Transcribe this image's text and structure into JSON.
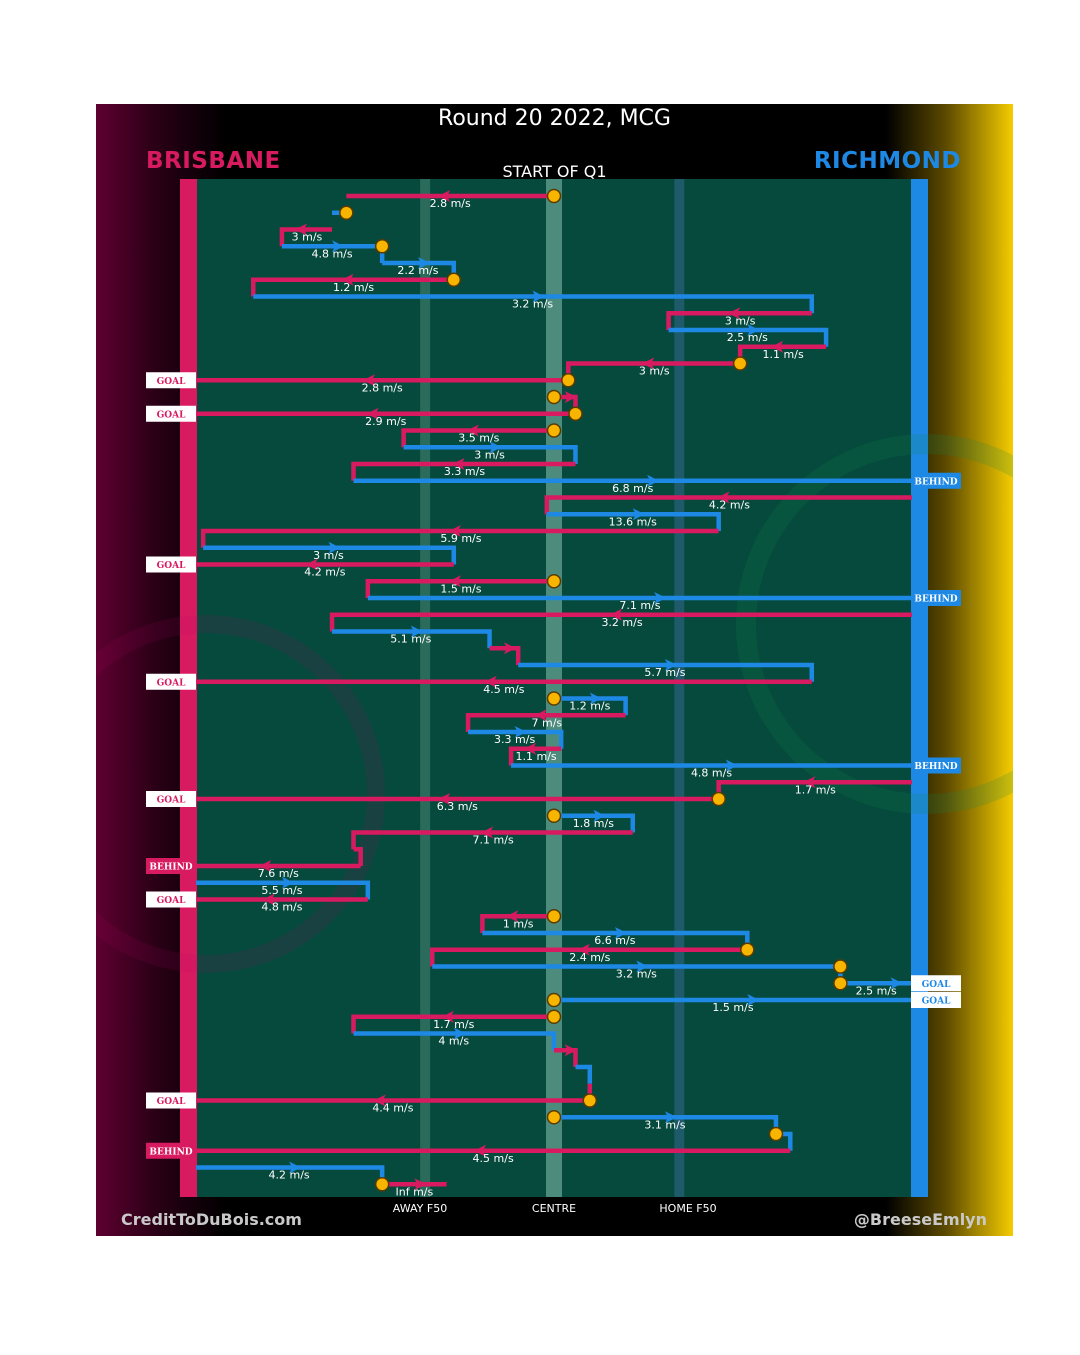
{
  "colors": {
    "brisbane": "#d81b60",
    "richmond": "#1e88e5",
    "field": "#054a3c",
    "ball": "#f7b500",
    "ball_stroke": "#5a3a00"
  },
  "poster": {
    "title": "Round 20 2022, MCG",
    "team_left": "BRISBANE",
    "team_right": "RICHMOND",
    "period": "START OF Q1",
    "credit_left": "CreditToDuBois.com",
    "credit_right": "@BreeseEmlyn"
  },
  "chart_data": {
    "type": "chain-of-possession",
    "title": "Round 20 2022, MCG",
    "subtitle": "START OF Q1",
    "x_axis_labels": [
      "AWAY F50",
      "CENTRE",
      "HOME F50"
    ],
    "x_range": [
      0,
      100
    ],
    "axis_positions": {
      "away_f50": 32,
      "centre": 50,
      "home_f50": 67.5
    },
    "left_team": "BRISBANE",
    "right_team": "RICHMOND",
    "outcome_tags": [
      {
        "team": "brisbane",
        "text": "GOAL",
        "row": 11
      },
      {
        "team": "brisbane",
        "text": "GOAL",
        "row": 13
      },
      {
        "team": "richmond",
        "text": "BEHIND",
        "row": 17
      },
      {
        "team": "brisbane",
        "text": "GOAL",
        "row": 22
      },
      {
        "team": "richmond",
        "text": "BEHIND",
        "row": 24
      },
      {
        "team": "brisbane",
        "text": "GOAL",
        "row": 29
      },
      {
        "team": "richmond",
        "text": "BEHIND",
        "row": 34
      },
      {
        "team": "brisbane",
        "text": "GOAL",
        "row": 36
      },
      {
        "team": "brisbane",
        "text": "BEHIND",
        "row": 40
      },
      {
        "team": "brisbane",
        "text": "GOAL",
        "row": 42
      },
      {
        "team": "richmond",
        "text": "GOAL",
        "row": 47
      },
      {
        "team": "richmond",
        "text": "GOAL",
        "row": 48
      },
      {
        "team": "brisbane",
        "text": "GOAL",
        "row": 54
      },
      {
        "team": "brisbane",
        "text": "BEHIND",
        "row": 57
      }
    ],
    "possessions": [
      {
        "team": "brisbane",
        "x1": 50,
        "x2": 21,
        "row": 0,
        "speed": "2.8 m/s",
        "ball_start": true
      },
      {
        "team": "richmond",
        "x1": 19,
        "x2": 21,
        "row": 1,
        "speed": "",
        "ball_end": true
      },
      {
        "team": "brisbane",
        "x1": 19,
        "x2": 12,
        "row": 2,
        "speed": "3 m/s"
      },
      {
        "team": "richmond",
        "x1": 12,
        "x2": 26,
        "row": 3,
        "speed": "4.8 m/s",
        "ball_end": true
      },
      {
        "team": "richmond",
        "x1": 26,
        "x2": 36,
        "row": 4,
        "speed": "2.2 m/s"
      },
      {
        "team": "brisbane",
        "x1": 36,
        "x2": 8,
        "row": 5,
        "speed": "1.2 m/s",
        "ball_start": true
      },
      {
        "team": "richmond",
        "x1": 8,
        "x2": 86,
        "row": 6,
        "speed": "3.2 m/s"
      },
      {
        "team": "brisbane",
        "x1": 86,
        "x2": 66,
        "row": 7,
        "speed": "3 m/s"
      },
      {
        "team": "richmond",
        "x1": 66,
        "x2": 88,
        "row": 8,
        "speed": "2.5 m/s"
      },
      {
        "team": "brisbane",
        "x1": 88,
        "x2": 76,
        "row": 9,
        "speed": "1.1 m/s"
      },
      {
        "team": "brisbane",
        "x1": 76,
        "x2": 52,
        "row": 10,
        "speed": "3 m/s",
        "ball_start": true
      },
      {
        "team": "brisbane",
        "x1": 52,
        "x2": -2,
        "row": 11,
        "speed": "2.8 m/s",
        "ball_start": true
      },
      {
        "team": "brisbane",
        "x1": 50,
        "x2": 53,
        "row": 12,
        "speed": "",
        "ball_start": true
      },
      {
        "team": "brisbane",
        "x1": 53,
        "x2": -2,
        "row": 13,
        "speed": "2.9 m/s",
        "ball_start": true
      },
      {
        "team": "brisbane",
        "x1": 50,
        "x2": 29,
        "row": 14,
        "speed": "3.5 m/s",
        "ball_start": true
      },
      {
        "team": "richmond",
        "x1": 29,
        "x2": 53,
        "row": 15,
        "speed": "3 m/s"
      },
      {
        "team": "brisbane",
        "x1": 53,
        "x2": 22,
        "row": 16,
        "speed": "3.3 m/s"
      },
      {
        "team": "richmond",
        "x1": 22,
        "x2": 104,
        "row": 17,
        "speed": "6.8 m/s"
      },
      {
        "team": "brisbane",
        "x1": 100,
        "x2": 49,
        "row": 18,
        "speed": "4.2 m/s"
      },
      {
        "team": "richmond",
        "x1": 49,
        "x2": 73,
        "row": 19,
        "speed": "13.6 m/s"
      },
      {
        "team": "brisbane",
        "x1": 73,
        "x2": 1,
        "row": 20,
        "speed": "5.9 m/s"
      },
      {
        "team": "richmond",
        "x1": 1,
        "x2": 36,
        "row": 21,
        "speed": "3 m/s"
      },
      {
        "team": "brisbane",
        "x1": 36,
        "x2": -2,
        "row": 22,
        "speed": "4.2 m/s"
      },
      {
        "team": "brisbane",
        "x1": 50,
        "x2": 24,
        "row": 23,
        "speed": "1.5 m/s",
        "ball_start": true
      },
      {
        "team": "richmond",
        "x1": 24,
        "x2": 104,
        "row": 24,
        "speed": "7.1 m/s"
      },
      {
        "team": "brisbane",
        "x1": 100,
        "x2": 19,
        "row": 25,
        "speed": "3.2 m/s"
      },
      {
        "team": "richmond",
        "x1": 19,
        "x2": 41,
        "row": 26,
        "speed": "5.1 m/s"
      },
      {
        "team": "brisbane",
        "x1": 41,
        "x2": 45,
        "row": 27,
        "speed": ""
      },
      {
        "team": "richmond",
        "x1": 45,
        "x2": 86,
        "row": 28,
        "speed": "5.7 m/s"
      },
      {
        "team": "brisbane",
        "x1": 86,
        "x2": -2,
        "row": 29,
        "speed": "4.5 m/s"
      },
      {
        "team": "richmond",
        "x1": 50,
        "x2": 60,
        "row": 30,
        "speed": "1.2 m/s",
        "ball_start": true
      },
      {
        "team": "brisbane",
        "x1": 60,
        "x2": 38,
        "row": 31,
        "speed": "7 m/s"
      },
      {
        "team": "richmond",
        "x1": 38,
        "x2": 51,
        "row": 32,
        "speed": "3.3 m/s"
      },
      {
        "team": "brisbane",
        "x1": 51,
        "x2": 44,
        "row": 33,
        "speed": "1.1 m/s"
      },
      {
        "team": "richmond",
        "x1": 44,
        "x2": 104,
        "row": 34,
        "speed": "4.8 m/s"
      },
      {
        "team": "brisbane",
        "x1": 100,
        "x2": 73,
        "row": 35,
        "speed": "1.7 m/s"
      },
      {
        "team": "brisbane",
        "x1": 73,
        "x2": -2,
        "row": 36,
        "speed": "6.3 m/s",
        "ball_start": true
      },
      {
        "team": "richmond",
        "x1": 50,
        "x2": 61,
        "row": 37,
        "speed": "1.8 m/s",
        "ball_start": true
      },
      {
        "team": "brisbane",
        "x1": 61,
        "x2": 22,
        "row": 38,
        "speed": "7.1 m/s"
      },
      {
        "team": "brisbane",
        "x1": 22,
        "x2": 23,
        "row": 39,
        "speed": ""
      },
      {
        "team": "brisbane",
        "x1": 23,
        "x2": -2,
        "row": 40,
        "speed": "7.6 m/s"
      },
      {
        "team": "richmond",
        "x1": 0,
        "x2": 24,
        "row": 41,
        "speed": "5.5 m/s"
      },
      {
        "team": "brisbane",
        "x1": 24,
        "x2": -2,
        "row": 42,
        "speed": "4.8 m/s"
      },
      {
        "team": "brisbane",
        "x1": 50,
        "x2": 40,
        "row": 43,
        "speed": "1 m/s",
        "ball_start": true
      },
      {
        "team": "richmond",
        "x1": 40,
        "x2": 77,
        "row": 44,
        "speed": "6.6 m/s"
      },
      {
        "team": "brisbane",
        "x1": 77,
        "x2": 33,
        "row": 45,
        "speed": "2.4 m/s",
        "ball_start": true
      },
      {
        "team": "richmond",
        "x1": 33,
        "x2": 90,
        "row": 46,
        "speed": "3.2 m/s",
        "ball_end": true
      },
      {
        "team": "richmond",
        "x1": 90,
        "x2": 104,
        "row": 47,
        "speed": "2.5 m/s",
        "ball_start": true
      },
      {
        "team": "richmond",
        "x1": 50,
        "x2": 104,
        "row": 48,
        "speed": "1.5 m/s",
        "ball_start": true
      },
      {
        "team": "brisbane",
        "x1": 50,
        "x2": 22,
        "row": 49,
        "speed": "1.7 m/s",
        "ball_start": true
      },
      {
        "team": "richmond",
        "x1": 22,
        "x2": 50,
        "row": 50,
        "speed": "4 m/s"
      },
      {
        "team": "brisbane",
        "x1": 50,
        "x2": 53,
        "row": 51,
        "speed": ""
      },
      {
        "team": "richmond",
        "x1": 53,
        "x2": 55,
        "row": 52,
        "speed": ""
      },
      {
        "team": "brisbane",
        "x1": 55,
        "x2": 55,
        "row": 53,
        "speed": ""
      },
      {
        "team": "brisbane",
        "x1": 55,
        "x2": -2,
        "row": 54,
        "speed": "4.4 m/s",
        "ball_start": true
      },
      {
        "team": "richmond",
        "x1": 50,
        "x2": 81,
        "row": 55,
        "speed": "3.1 m/s",
        "ball_start": true
      },
      {
        "team": "richmond",
        "x1": 81,
        "x2": 83,
        "row": 56,
        "speed": "",
        "ball_start": true
      },
      {
        "team": "brisbane",
        "x1": 83,
        "x2": -2,
        "row": 57,
        "speed": "4.5 m/s"
      },
      {
        "team": "richmond",
        "x1": 0,
        "x2": 26,
        "row": 58,
        "speed": "4.2 m/s"
      },
      {
        "team": "brisbane",
        "x1": 26,
        "x2": 35,
        "row": 59,
        "speed": "Inf m/s",
        "ball_start": true
      }
    ]
  }
}
